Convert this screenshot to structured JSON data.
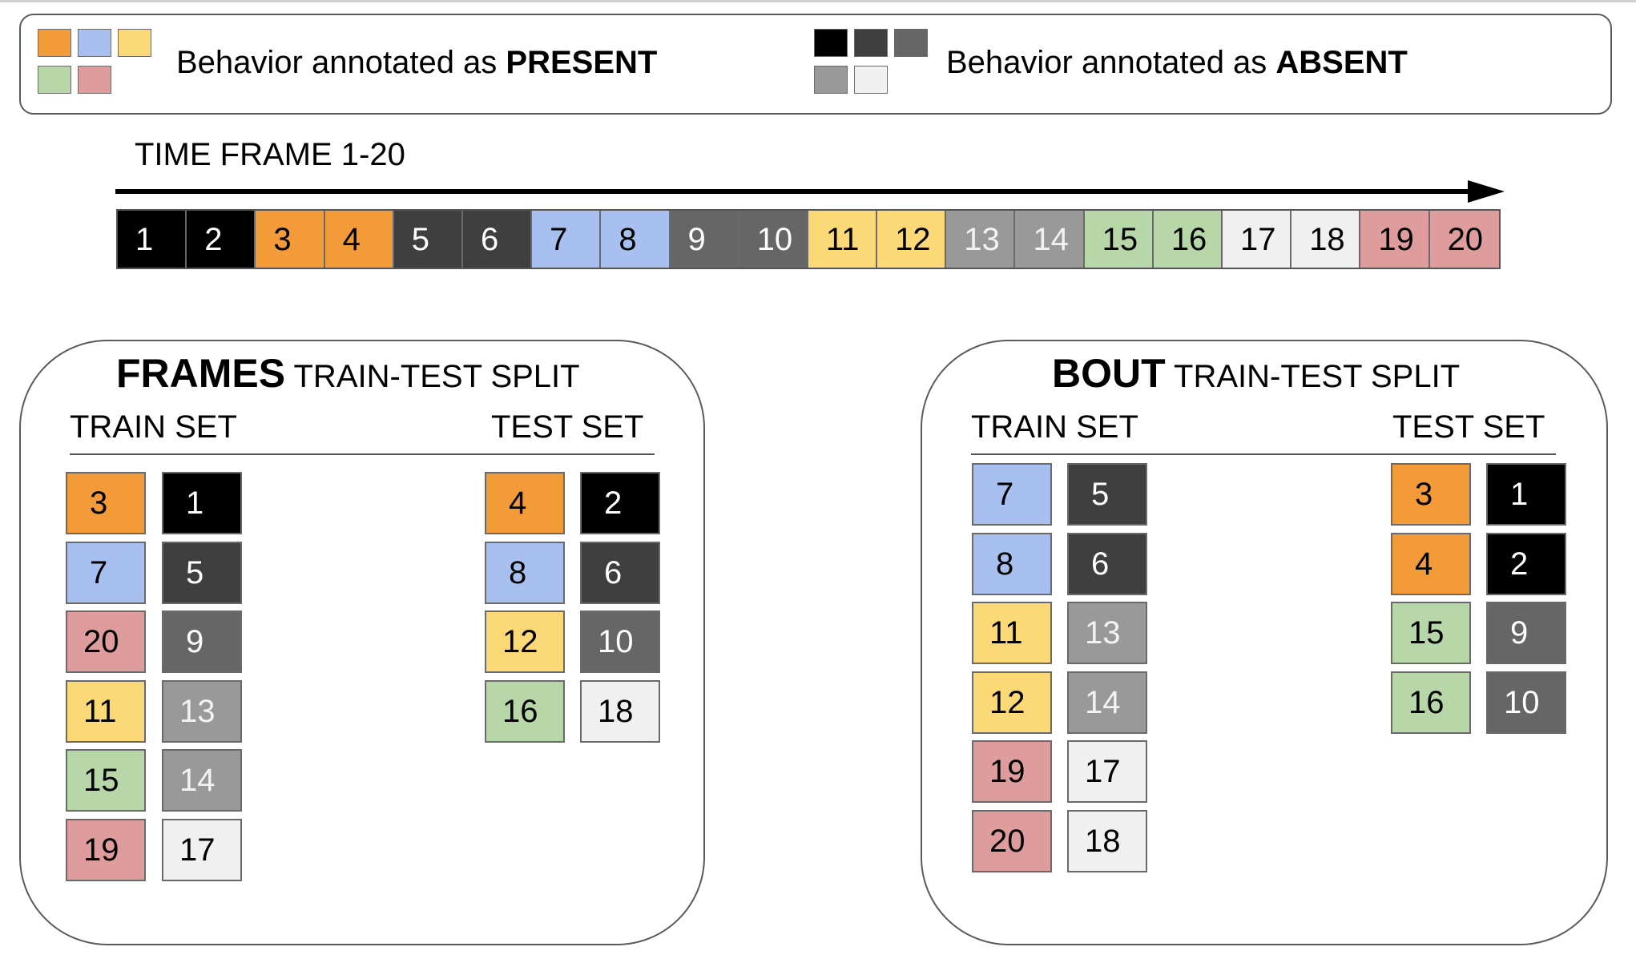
{
  "colors": {
    "orange": "#f29b38",
    "blue": "#a7c0ef",
    "yellow": "#fbd977",
    "green": "#b7d7a9",
    "pink": "#de9c9c",
    "black": "#000000",
    "darkgray": "#3f3f3f",
    "midgray": "#666666",
    "gray": "#999999",
    "lightgray": "#f0f0f0"
  },
  "legend": {
    "present_prefix": "Behavior annotated as ",
    "present_bold": "PRESENT",
    "absent_prefix": "Behavior annotated as ",
    "absent_bold": "ABSENT",
    "present_swatches": [
      "orange",
      "blue",
      "yellow",
      "green",
      "pink"
    ],
    "absent_swatches": [
      "black",
      "darkgray",
      "midgray",
      "gray",
      "lightgray"
    ]
  },
  "timeline": {
    "label": "TIME FRAME 1-20",
    "frames": [
      {
        "n": "1",
        "c": "black"
      },
      {
        "n": "2",
        "c": "black"
      },
      {
        "n": "3",
        "c": "orange"
      },
      {
        "n": "4",
        "c": "orange"
      },
      {
        "n": "5",
        "c": "darkgray"
      },
      {
        "n": "6",
        "c": "darkgray"
      },
      {
        "n": "7",
        "c": "blue"
      },
      {
        "n": "8",
        "c": "blue"
      },
      {
        "n": "9",
        "c": "midgray"
      },
      {
        "n": "10",
        "c": "midgray"
      },
      {
        "n": "11",
        "c": "yellow"
      },
      {
        "n": "12",
        "c": "yellow"
      },
      {
        "n": "13",
        "c": "gray"
      },
      {
        "n": "14",
        "c": "gray"
      },
      {
        "n": "15",
        "c": "green"
      },
      {
        "n": "16",
        "c": "green"
      },
      {
        "n": "17",
        "c": "lightgray"
      },
      {
        "n": "18",
        "c": "lightgray"
      },
      {
        "n": "19",
        "c": "pink"
      },
      {
        "n": "20",
        "c": "pink"
      }
    ]
  },
  "frames_split": {
    "title_bold": "FRAMES",
    "title_rest": " TRAIN-TEST SPLIT",
    "train_label": "TRAIN SET",
    "test_label": "TEST SET",
    "train_present": [
      {
        "n": "3",
        "c": "orange"
      },
      {
        "n": "7",
        "c": "blue"
      },
      {
        "n": "20",
        "c": "pink"
      },
      {
        "n": "11",
        "c": "yellow"
      },
      {
        "n": "15",
        "c": "green"
      },
      {
        "n": "19",
        "c": "pink"
      }
    ],
    "train_absent": [
      {
        "n": "1",
        "c": "black"
      },
      {
        "n": "5",
        "c": "darkgray"
      },
      {
        "n": "9",
        "c": "midgray"
      },
      {
        "n": "13",
        "c": "gray"
      },
      {
        "n": "14",
        "c": "gray"
      },
      {
        "n": "17",
        "c": "lightgray"
      }
    ],
    "test_present": [
      {
        "n": "4",
        "c": "orange"
      },
      {
        "n": "8",
        "c": "blue"
      },
      {
        "n": "12",
        "c": "yellow"
      },
      {
        "n": "16",
        "c": "green"
      }
    ],
    "test_absent": [
      {
        "n": "2",
        "c": "black"
      },
      {
        "n": "6",
        "c": "darkgray"
      },
      {
        "n": "10",
        "c": "midgray"
      },
      {
        "n": "18",
        "c": "lightgray"
      }
    ]
  },
  "bout_split": {
    "title_bold": "BOUT",
    "title_rest": " TRAIN-TEST SPLIT",
    "train_label": "TRAIN SET",
    "test_label": "TEST SET",
    "train_present": [
      {
        "n": "7",
        "c": "blue"
      },
      {
        "n": "8",
        "c": "blue"
      },
      {
        "n": "11",
        "c": "yellow"
      },
      {
        "n": "12",
        "c": "yellow"
      },
      {
        "n": "19",
        "c": "pink"
      },
      {
        "n": "20",
        "c": "pink"
      }
    ],
    "train_absent": [
      {
        "n": "5",
        "c": "darkgray"
      },
      {
        "n": "6",
        "c": "darkgray"
      },
      {
        "n": "13",
        "c": "gray"
      },
      {
        "n": "14",
        "c": "gray"
      },
      {
        "n": "17",
        "c": "lightgray"
      },
      {
        "n": "18",
        "c": "lightgray"
      }
    ],
    "test_present": [
      {
        "n": "3",
        "c": "orange"
      },
      {
        "n": "4",
        "c": "orange"
      },
      {
        "n": "15",
        "c": "green"
      },
      {
        "n": "16",
        "c": "green"
      }
    ],
    "test_absent": [
      {
        "n": "1",
        "c": "black"
      },
      {
        "n": "2",
        "c": "black"
      },
      {
        "n": "9",
        "c": "midgray"
      },
      {
        "n": "10",
        "c": "midgray"
      }
    ]
  }
}
